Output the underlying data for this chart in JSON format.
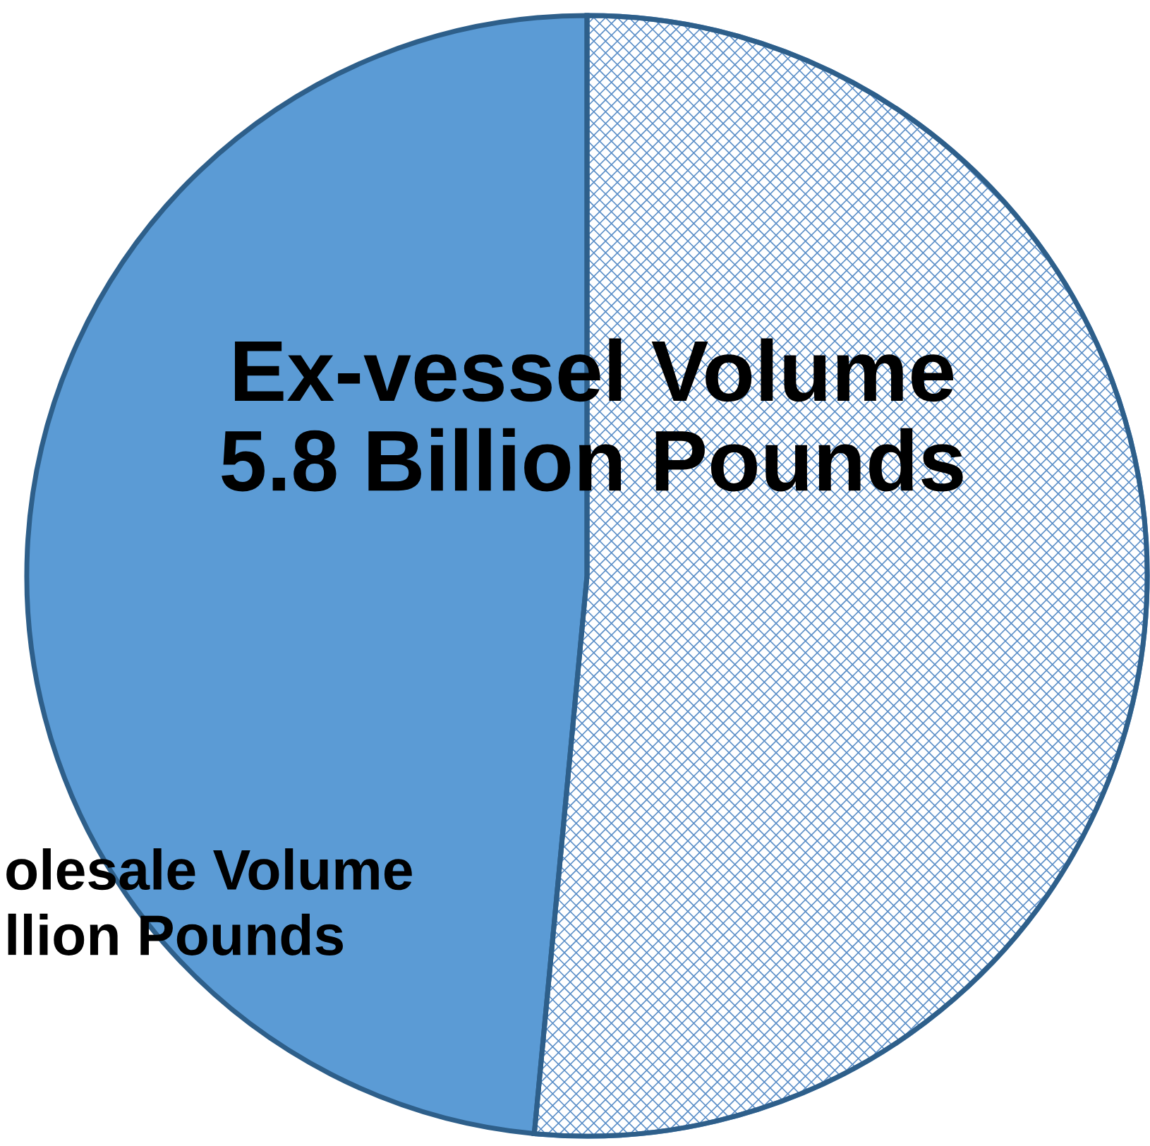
{
  "chart_data": {
    "type": "pie",
    "categories": [
      "Ex-vessel Volume\n5.8 Billion Pounds",
      "olesale Volume\nllion Pounds"
    ],
    "values": [
      51.5,
      48.5
    ],
    "colors": [
      "#5b8fc8",
      "#5b9bd5"
    ]
  }
}
